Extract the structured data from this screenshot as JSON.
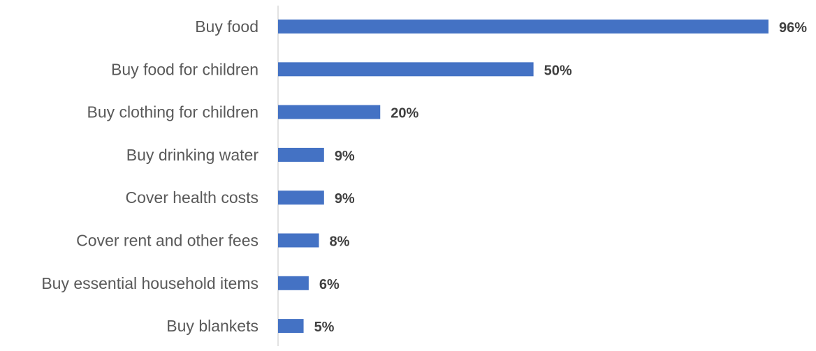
{
  "chart_data": {
    "type": "bar",
    "orientation": "horizontal",
    "categories": [
      "Buy food",
      "Buy food for children",
      "Buy clothing for children",
      "Buy drinking water",
      "Cover health costs",
      "Cover rent and other fees",
      "Buy essential household items",
      "Buy blankets"
    ],
    "values": [
      96,
      50,
      20,
      9,
      9,
      8,
      6,
      5
    ],
    "value_labels": [
      "96%",
      "50%",
      "20%",
      "9%",
      "9%",
      "8%",
      "6%",
      "5%"
    ],
    "unit": "%",
    "xlim": [
      0,
      100
    ],
    "grid": false,
    "legend": "none",
    "bar_color": "#4472C4"
  }
}
